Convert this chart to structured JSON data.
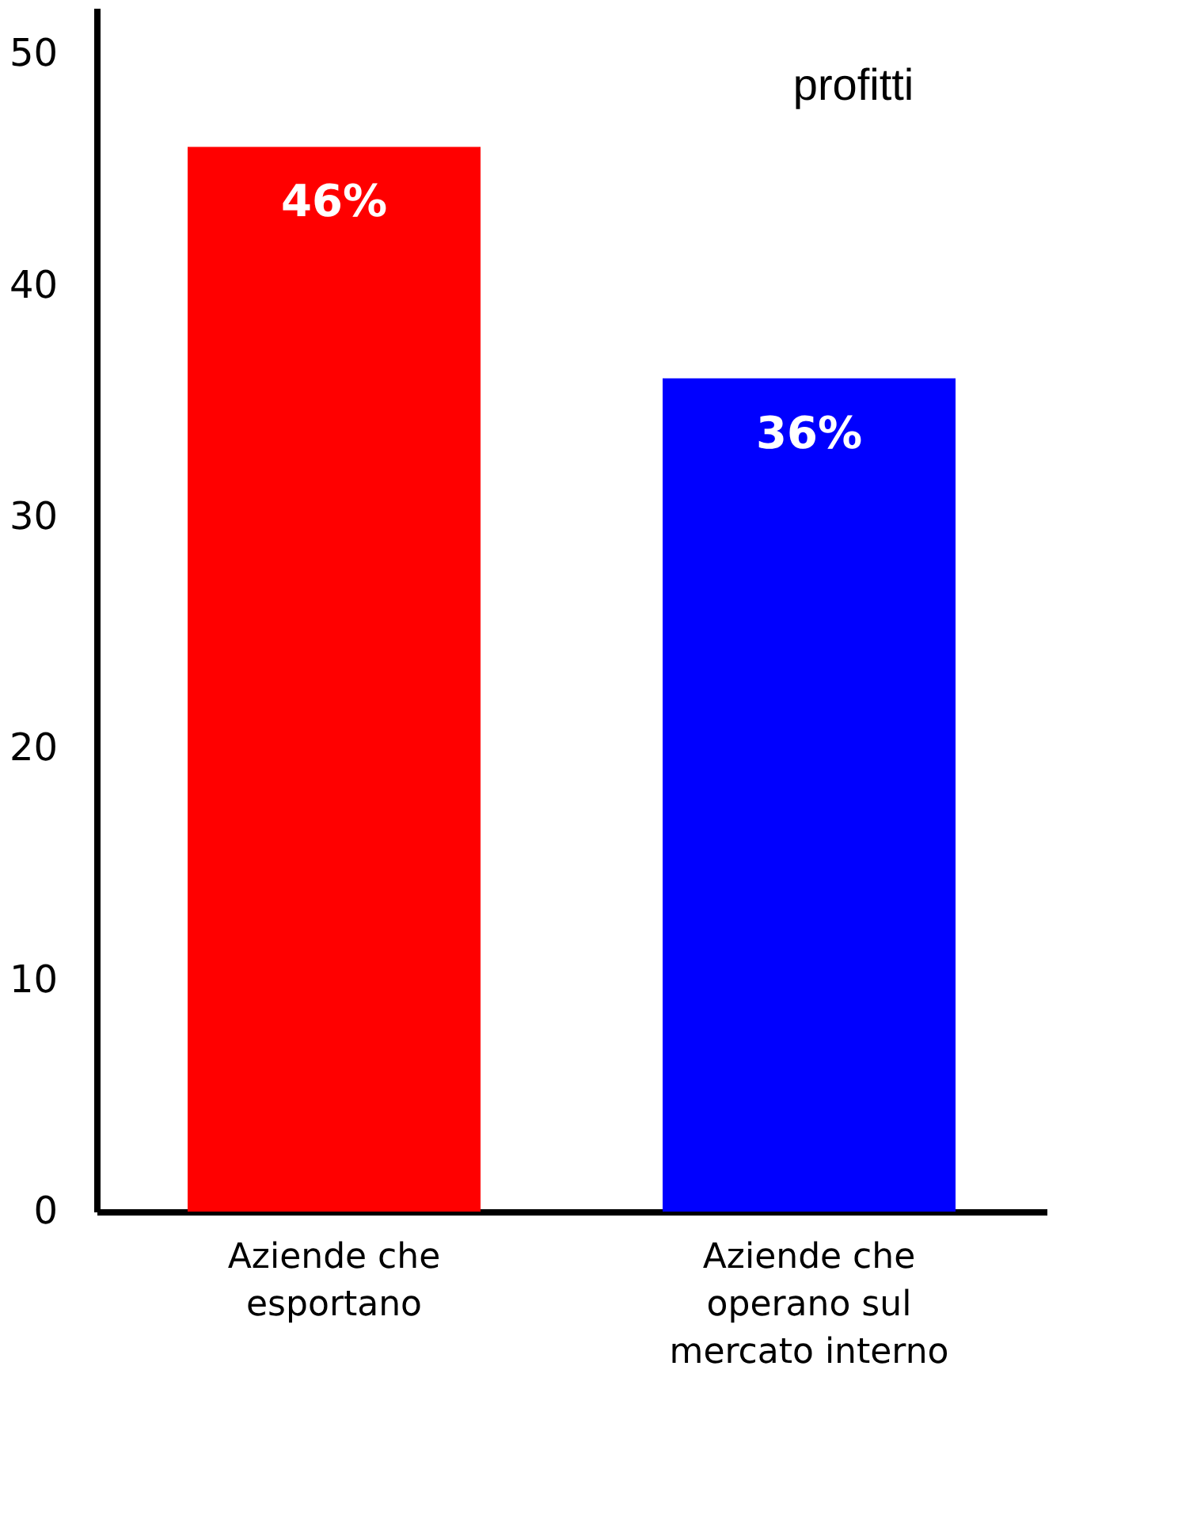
{
  "chart_data": {
    "type": "bar",
    "categories": [
      "Aziende che esportano",
      "Aziende che operano sul mercato interno"
    ],
    "values": [
      46,
      36
    ],
    "colors": [
      "#ff0000",
      "#0000ff"
    ],
    "value_labels": [
      "46%",
      "36%"
    ],
    "ylim": [
      0,
      52
    ],
    "yticks": [
      0,
      10,
      20,
      30,
      40,
      50
    ],
    "grid": false,
    "annotations": [
      "profitti"
    ]
  }
}
